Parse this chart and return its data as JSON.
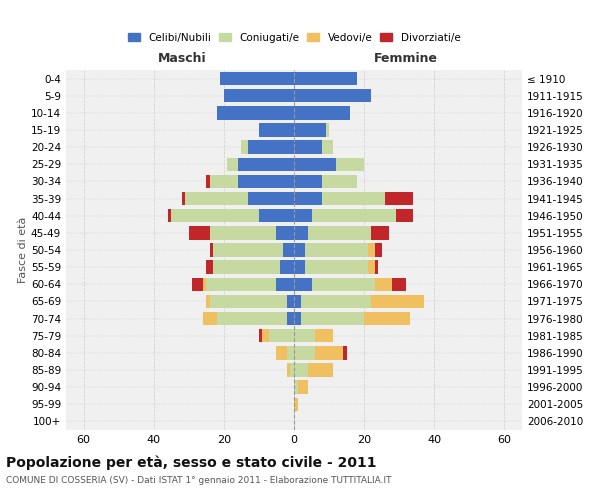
{
  "age_groups": [
    "0-4",
    "5-9",
    "10-14",
    "15-19",
    "20-24",
    "25-29",
    "30-34",
    "35-39",
    "40-44",
    "45-49",
    "50-54",
    "55-59",
    "60-64",
    "65-69",
    "70-74",
    "75-79",
    "80-84",
    "85-89",
    "90-94",
    "95-99",
    "100+"
  ],
  "birth_years": [
    "2006-2010",
    "2001-2005",
    "1996-2000",
    "1991-1995",
    "1986-1990",
    "1981-1985",
    "1976-1980",
    "1971-1975",
    "1966-1970",
    "1961-1965",
    "1956-1960",
    "1951-1955",
    "1946-1950",
    "1941-1945",
    "1936-1940",
    "1931-1935",
    "1926-1930",
    "1921-1925",
    "1916-1920",
    "1911-1915",
    "≤ 1910"
  ],
  "maschi": {
    "celibi": [
      21,
      20,
      22,
      10,
      13,
      16,
      16,
      13,
      10,
      5,
      3,
      4,
      5,
      2,
      2,
      0,
      0,
      0,
      0,
      0,
      0
    ],
    "coniugati": [
      0,
      0,
      0,
      0,
      2,
      3,
      8,
      18,
      25,
      19,
      20,
      19,
      20,
      22,
      20,
      7,
      2,
      1,
      0,
      0,
      0
    ],
    "vedovi": [
      0,
      0,
      0,
      0,
      0,
      0,
      0,
      0,
      0,
      0,
      0,
      0,
      1,
      1,
      4,
      2,
      3,
      1,
      0,
      0,
      0
    ],
    "divorziati": [
      0,
      0,
      0,
      0,
      0,
      0,
      1,
      1,
      1,
      6,
      1,
      2,
      3,
      0,
      0,
      1,
      0,
      0,
      0,
      0,
      0
    ]
  },
  "femmine": {
    "nubili": [
      18,
      22,
      16,
      9,
      8,
      12,
      8,
      8,
      5,
      4,
      3,
      3,
      5,
      2,
      2,
      0,
      0,
      0,
      0,
      0,
      0
    ],
    "coniugate": [
      0,
      0,
      0,
      1,
      3,
      8,
      10,
      18,
      24,
      18,
      18,
      18,
      18,
      20,
      18,
      6,
      6,
      4,
      1,
      0,
      0
    ],
    "vedove": [
      0,
      0,
      0,
      0,
      0,
      0,
      0,
      0,
      0,
      0,
      2,
      2,
      5,
      15,
      13,
      5,
      8,
      7,
      3,
      1,
      0
    ],
    "divorziate": [
      0,
      0,
      0,
      0,
      0,
      0,
      0,
      8,
      5,
      5,
      2,
      1,
      4,
      0,
      0,
      0,
      1,
      0,
      0,
      0,
      0
    ]
  },
  "colors": {
    "celibi_nubili": "#4472c4",
    "coniugati": "#c5d9a0",
    "vedovi": "#f0c060",
    "divorziati": "#c0262a"
  },
  "xlim": 65,
  "title": "Popolazione per età, sesso e stato civile - 2011",
  "subtitle": "COMUNE DI COSSERIA (SV) - Dati ISTAT 1° gennaio 2011 - Elaborazione TUTTITALIA.IT",
  "ylabel_left": "Fasce di età",
  "xlabel_left": "Maschi",
  "xlabel_right": "Femmine",
  "bg_color": "#f0f0f0",
  "grid_color": "#cccccc"
}
